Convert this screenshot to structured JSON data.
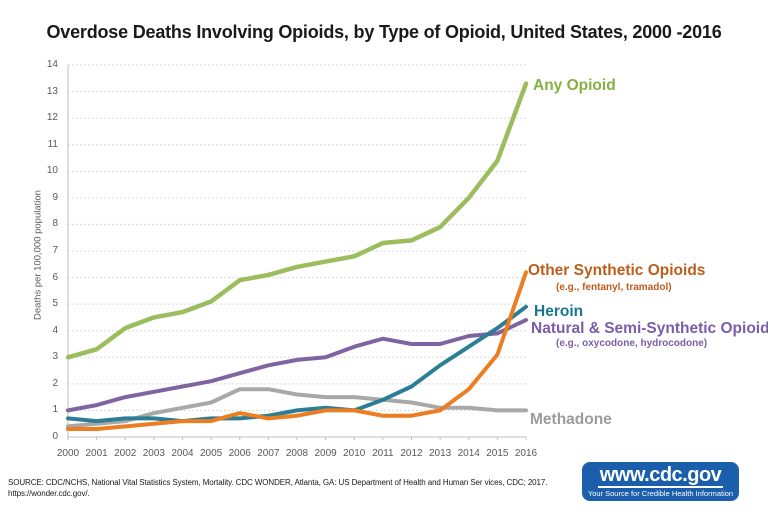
{
  "title": "Overdose Deaths Involving Opioids, by Type of Opioid, United States, 2000 -2016",
  "chart_data": {
    "type": "line",
    "title": "Overdose Deaths Involving Opioids, by Type of Opioid, United States, 2000 -2016",
    "xlabel": "",
    "ylabel": "Deaths per 100,000 population",
    "x": [
      2000,
      2001,
      2002,
      2003,
      2004,
      2005,
      2006,
      2007,
      2008,
      2009,
      2010,
      2011,
      2012,
      2013,
      2014,
      2015,
      2016
    ],
    "ylim": [
      0,
      14
    ],
    "ytick_step": 1,
    "grid": true,
    "legend_position": "inline-right",
    "series": [
      {
        "name": "Any Opioid",
        "label": "Any Opioid",
        "sublabel": "",
        "line_color": "#9CBD5E",
        "label_color": "#86B142",
        "values": [
          3.0,
          3.3,
          4.1,
          4.5,
          4.7,
          5.1,
          5.9,
          6.1,
          6.4,
          6.6,
          6.8,
          7.3,
          7.4,
          7.9,
          9.0,
          10.4,
          13.3
        ]
      },
      {
        "name": "Other Synthetic Opioids",
        "label": "Other Synthetic Opioids",
        "sublabel": "(e.g., fentanyl, tramadol)",
        "line_color": "#EC7D21",
        "label_color": "#BC5D1B",
        "values": [
          0.3,
          0.3,
          0.4,
          0.5,
          0.6,
          0.6,
          0.9,
          0.7,
          0.8,
          1.0,
          1.0,
          0.8,
          0.8,
          1.0,
          1.8,
          3.1,
          6.2
        ]
      },
      {
        "name": "Heroin",
        "label": "Heroin",
        "sublabel": "",
        "line_color": "#2C7E95",
        "label_color": "#1A768F",
        "values": [
          0.7,
          0.6,
          0.7,
          0.7,
          0.6,
          0.7,
          0.7,
          0.8,
          1.0,
          1.1,
          1.0,
          1.4,
          1.9,
          2.7,
          3.4,
          4.1,
          4.9
        ]
      },
      {
        "name": "Natural & Semi-Synthetic Opioids",
        "label": "Natural & Semi-Synthetic Opioids",
        "sublabel": "(e.g., oxycodone, hydrocodone)",
        "line_color": "#8064A2",
        "label_color": "#7A5DA8",
        "values": [
          1.0,
          1.2,
          1.5,
          1.7,
          1.9,
          2.1,
          2.4,
          2.7,
          2.9,
          3.0,
          3.4,
          3.7,
          3.5,
          3.5,
          3.8,
          3.9,
          4.4
        ]
      },
      {
        "name": "Methadone",
        "label": "Methadone",
        "sublabel": "",
        "line_color": "#A8A8A8",
        "label_color": "#9C9C9C",
        "values": [
          0.4,
          0.5,
          0.6,
          0.9,
          1.1,
          1.3,
          1.8,
          1.8,
          1.6,
          1.5,
          1.5,
          1.4,
          1.3,
          1.1,
          1.1,
          1.0,
          1.0
        ]
      }
    ],
    "draw_order": [
      0,
      4,
      3,
      2,
      1
    ]
  },
  "source": {
    "line1": "SOURCE: CDC/NCHS, National Vital Statistics System, Mortality. CDC WONDER, Atlanta, GA: US Department of Health and Human Ser vices, CDC; 2017.",
    "line2": "https://wonder.cdc.gov/."
  },
  "logo": {
    "url_text": "www.cdc.gov",
    "tagline": "Your Source for Credible Health Information",
    "bg_color": "#1B5EAB"
  }
}
